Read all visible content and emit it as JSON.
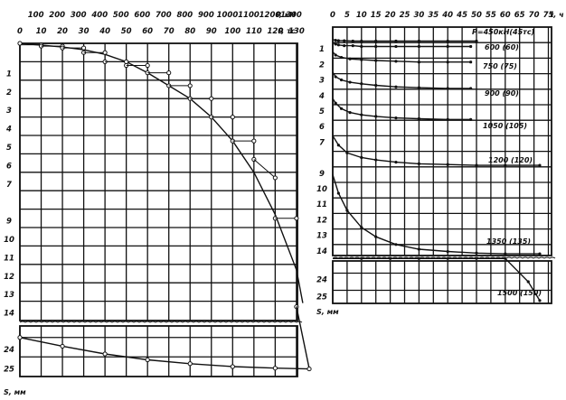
{
  "chart_data": [
    {
      "type": "line",
      "title": "",
      "x_axis_top": {
        "label": "P, кН",
        "ticks": [
          "100",
          "200",
          "300",
          "400",
          "500",
          "600",
          "700",
          "800",
          "900",
          "1000",
          "1100",
          "1200",
          "1300"
        ]
      },
      "x_axis_mid": {
        "label": "P, тс",
        "ticks": [
          "0",
          "10",
          "20",
          "30",
          "40",
          "50",
          "60",
          "70",
          "80",
          "90",
          "100",
          "110",
          "120",
          "130"
        ]
      },
      "y_axis": {
        "label": "S, мм",
        "ticks_upper": [
          "1",
          "2",
          "3",
          "4",
          "5",
          "6",
          "7",
          "9",
          "10",
          "11",
          "12",
          "13",
          "14"
        ],
        "ticks_lower": [
          "24",
          "25"
        ]
      },
      "ylim_upper": [
        0,
        15
      ],
      "ylim_lower": [
        23.5,
        26
      ],
      "series": [
        {
          "style": "curve",
          "x": [
            0,
            10,
            20,
            30,
            40,
            50,
            60,
            70,
            80,
            90,
            100,
            110,
            120,
            130,
            133
          ],
          "y": [
            0,
            0.1,
            0.2,
            0.35,
            0.6,
            1.0,
            1.6,
            2.3,
            3.0,
            4.0,
            5.3,
            7.0,
            9.3,
            12.3,
            14.1
          ]
        },
        {
          "style": "settlement-steps",
          "x": [
            0,
            10,
            20,
            30,
            40,
            50,
            60,
            70,
            80,
            90,
            100,
            110,
            120,
            130
          ],
          "y_start": [
            0,
            0.08,
            0.15,
            0.25,
            0.5,
            1.0,
            1.2,
            1.6,
            2.3,
            3.0,
            4.0,
            5.3,
            7.3,
            9.5
          ],
          "y_end": [
            0.08,
            0.15,
            0.25,
            0.5,
            1.0,
            1.2,
            1.6,
            2.3,
            3.0,
            4.0,
            5.3,
            6.3,
            9.5,
            14.3
          ]
        },
        {
          "style": "unload",
          "x": [
            0,
            20,
            40,
            60,
            80,
            100,
            120,
            136
          ],
          "y": [
            24.0,
            24.45,
            24.85,
            25.15,
            25.35,
            25.5,
            25.58,
            25.62
          ]
        }
      ]
    },
    {
      "type": "line",
      "title": "",
      "x_axis": {
        "label": "t, ч",
        "ticks": [
          "0",
          "5",
          "10",
          "15",
          "20",
          "25",
          "30",
          "35",
          "40",
          "45",
          "50",
          "55",
          "60",
          "65",
          "70",
          "75"
        ]
      },
      "y_axis": {
        "label": "S, мм",
        "ticks_upper": [
          "1",
          "2",
          "3",
          "4",
          "5",
          "6",
          "7",
          "9",
          "10",
          "11",
          "12",
          "13",
          "14"
        ],
        "ticks_lower": [
          "24",
          "25"
        ]
      },
      "xlim": [
        0,
        78
      ],
      "series": [
        {
          "name": "P=450кН(45тс)",
          "t": [
            0,
            1,
            2,
            4,
            7,
            10,
            15,
            22,
            30,
            40,
            50
          ],
          "s": [
            0.8,
            0.85,
            0.87,
            0.88,
            0.9,
            0.9,
            0.9,
            0.9,
            0.9,
            0.9,
            0.9
          ]
        },
        {
          "name": "600 (60)",
          "t": [
            0,
            1,
            2,
            4,
            7,
            10,
            15,
            22,
            30,
            40,
            48
          ],
          "s": [
            1.0,
            1.1,
            1.15,
            1.2,
            1.2,
            1.25,
            1.25,
            1.25,
            1.25,
            1.25,
            1.25
          ]
        },
        {
          "name": "750 (75)",
          "t": [
            0,
            1,
            3,
            6,
            10,
            15,
            22,
            30,
            40,
            48
          ],
          "s": [
            1.6,
            1.8,
            1.95,
            2.05,
            2.1,
            2.15,
            2.2,
            2.25,
            2.25,
            2.25
          ]
        },
        {
          "name": "900 (90)",
          "t": [
            0,
            1,
            3,
            6,
            10,
            15,
            22,
            30,
            40,
            48
          ],
          "s": [
            2.9,
            3.2,
            3.4,
            3.55,
            3.65,
            3.75,
            3.85,
            3.9,
            3.95,
            3.95
          ]
        },
        {
          "name": "1050 (105)",
          "t": [
            0,
            1,
            3,
            6,
            10,
            15,
            22,
            30,
            40,
            48
          ],
          "s": [
            4.6,
            4.9,
            5.25,
            5.5,
            5.65,
            5.75,
            5.85,
            5.9,
            5.95,
            5.95
          ]
        },
        {
          "name": "1200 (120)",
          "t": [
            0,
            2,
            5,
            10,
            15,
            22,
            30,
            40,
            50,
            60,
            72
          ],
          "s": [
            7.0,
            7.6,
            8.1,
            8.4,
            8.55,
            8.7,
            8.8,
            8.85,
            8.9,
            8.9,
            8.9
          ]
        },
        {
          "name": "1350 (135)",
          "t": [
            0,
            2,
            5,
            10,
            15,
            22,
            30,
            40,
            50,
            60,
            72
          ],
          "s": [
            9.5,
            10.7,
            11.8,
            12.9,
            13.5,
            14.0,
            14.3,
            14.45,
            14.55,
            14.6,
            14.6
          ]
        },
        {
          "name": "1500 (150)",
          "t": [
            0,
            10,
            20,
            30,
            40,
            50,
            60,
            68,
            72
          ],
          "s": [
            14.9,
            15.0,
            15.0,
            15.0,
            15.0,
            15.0,
            15.0,
            24.5,
            25.6
          ]
        }
      ]
    }
  ]
}
